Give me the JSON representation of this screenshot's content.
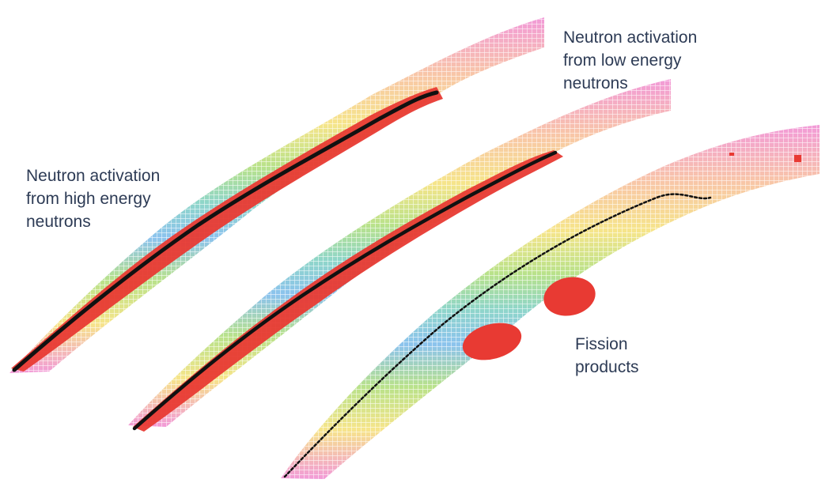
{
  "labels": {
    "high_energy": [
      "Neutron activation",
      "from high energy",
      "neutrons"
    ],
    "low_energy": [
      "Neutron activation",
      "from low energy",
      "neutrons"
    ],
    "fission": [
      "Fission",
      "products"
    ]
  },
  "colors": {
    "highlight": "#e83a33",
    "stability_line": "#111111",
    "text": "#2d3b55",
    "band_palette": [
      "#f29ad8",
      "#f8c6a8",
      "#f6e58a",
      "#b9e28a",
      "#8fd6c9",
      "#8cc3ee",
      "#b3b3f0"
    ]
  }
}
